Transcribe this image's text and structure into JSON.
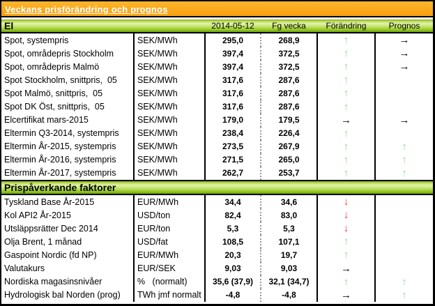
{
  "title": "Veckans prisförändring och prognos",
  "arrows": {
    "up": {
      "glyph": "↑",
      "color": "#8be08b"
    },
    "down": {
      "glyph": "↓",
      "color": "#ff3333"
    },
    "flat": {
      "glyph": "→",
      "color": "#000000"
    },
    "none": {
      "glyph": "",
      "color": ""
    }
  },
  "colors": {
    "title_bar_orange": "#faa81a",
    "section_bar_green": "#a3d335",
    "up_arrow_green": "#8be08b",
    "down_arrow_red": "#ff3333",
    "neutral_arrow_black": "#000000"
  },
  "sections": [
    {
      "header": "El",
      "columns": {
        "current": "2014-05-12",
        "previous": "Fg vecka",
        "change": "Förändring",
        "prognosis": "Prognos"
      },
      "rows": [
        {
          "label": "Spot, systempris",
          "unit": "SEK/MWh",
          "current": "295,0",
          "previous": "268,9",
          "change": "up",
          "prognosis": "flat"
        },
        {
          "label": "Spot, områdepris Stockholm",
          "unit": "SEK/MWh",
          "current": "397,4",
          "previous": "372,5",
          "change": "up",
          "prognosis": "flat"
        },
        {
          "label": "Spot, områdepris Malmö",
          "unit": "SEK/MWh",
          "current": "397,4",
          "previous": "372,5",
          "change": "up",
          "prognosis": "flat"
        },
        {
          "label": "Spot Stockholm, snittpris,  05",
          "unit": "SEK/MWh",
          "current": "317,6",
          "previous": "287,6",
          "change": "up",
          "prognosis": "none"
        },
        {
          "label": "Spot Malmö, snittpris,  05",
          "unit": "SEK/MWh",
          "current": "317,6",
          "previous": "287,6",
          "change": "up",
          "prognosis": "none"
        },
        {
          "label": "Spot DK Öst, snittpris,  05",
          "unit": "SEK/MWh",
          "current": "317,6",
          "previous": "287,6",
          "change": "up",
          "prognosis": "none"
        },
        {
          "label": "Elcertifikat mars-2015",
          "unit": "SEK/MWh",
          "current": "179,0",
          "previous": "179,5",
          "change": "flat",
          "prognosis": "flat"
        },
        {
          "label": "Eltermin Q3-2014, systempris",
          "unit": "SEK/MWh",
          "current": "238,4",
          "previous": "226,4",
          "change": "up",
          "prognosis": "none"
        },
        {
          "label": "Eltermin År-2015, systempris",
          "unit": "SEK/MWh",
          "current": "273,5",
          "previous": "267,9",
          "change": "up",
          "prognosis": "up"
        },
        {
          "label": "Eltermin År-2016, systempris",
          "unit": "SEK/MWh",
          "current": "271,5",
          "previous": "265,0",
          "change": "up",
          "prognosis": "up"
        },
        {
          "label": "Eltermin År-2017, systempris",
          "unit": "SEK/MWh",
          "current": "262,7",
          "previous": "253,7",
          "change": "up",
          "prognosis": "up"
        }
      ]
    },
    {
      "header": "Prispåverkande faktorer",
      "rows": [
        {
          "label": "Tyskland Base År-2015",
          "unit": "EUR/MWh",
          "current": "34,4",
          "previous": "34,6",
          "change": "down",
          "prognosis": "none"
        },
        {
          "label": "Kol API2 År-2015",
          "unit": "USD/ton",
          "current": "82,4",
          "previous": "83,0",
          "change": "down",
          "prognosis": "none"
        },
        {
          "label": "Utsläppsrätter Dec 2014",
          "unit": "EUR/ton",
          "current": "5,3",
          "previous": "5,3",
          "change": "down",
          "prognosis": "none"
        },
        {
          "label": "Olja Brent, 1 månad",
          "unit": "USD/fat",
          "current": "108,5",
          "previous": "107,1",
          "change": "up",
          "prognosis": "none"
        },
        {
          "label": "Gaspoint Nordic (fd NP)",
          "unit": "EUR/MWh",
          "current": "20,3",
          "previous": "19,7",
          "change": "up",
          "prognosis": "none"
        },
        {
          "label": "Valutakurs",
          "unit": "EUR/SEK",
          "current": "9,03",
          "previous": "9,03",
          "change": "flat",
          "prognosis": "none"
        },
        {
          "label": "Nordiska magasinsnivåer",
          "unit": "%   (normalt)",
          "current": "35,6 (37,9)",
          "previous": "32,1 (34,7)",
          "change": "up",
          "prognosis": "up"
        },
        {
          "label": "Hydrologisk bal Norden (prog)",
          "unit": "TWh jmf normalt",
          "current": "-4,8",
          "previous": "-4,8",
          "change": "flat",
          "prognosis": "up"
        }
      ]
    }
  ]
}
